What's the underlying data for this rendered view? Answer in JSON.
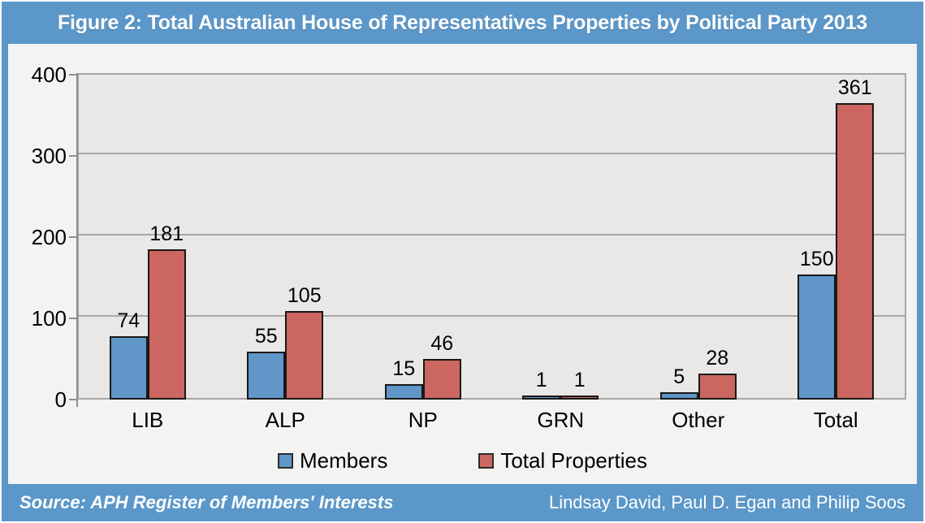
{
  "title": "Figure 2: Total Australian House of Representatives Properties by Political Party 2013",
  "footer": {
    "source": "Source: APH Register of Members' Interests",
    "authors": "Lindsay David, Paul D. Egan and Philip Soos"
  },
  "colors": {
    "frame_blue": "#5b97c9",
    "members_blue": "#6096c8",
    "properties_red": "#cb6760",
    "plot_background": "#e9e8e7",
    "figure_background": "#f3f3f1",
    "gridline": "#a8a7a5",
    "bar_border": "#181818"
  },
  "chart_data": {
    "type": "bar",
    "title": "Figure 2: Total Australian House of Representatives Properties by Political Party 2013",
    "categories": [
      "LIB",
      "ALP",
      "NP",
      "GRN",
      "Other",
      "Total"
    ],
    "series": [
      {
        "name": "Members",
        "color_key": "members_blue",
        "values": [
          74,
          55,
          15,
          1,
          5,
          150
        ]
      },
      {
        "name": "Total Properties",
        "color_key": "properties_red",
        "values": [
          181,
          105,
          46,
          1,
          28,
          361
        ]
      }
    ],
    "xlabel": "",
    "ylabel": "",
    "ylim": [
      0,
      400
    ],
    "yticks": [
      0,
      100,
      200,
      300,
      400
    ],
    "grid": true,
    "legend_position": "bottom"
  }
}
